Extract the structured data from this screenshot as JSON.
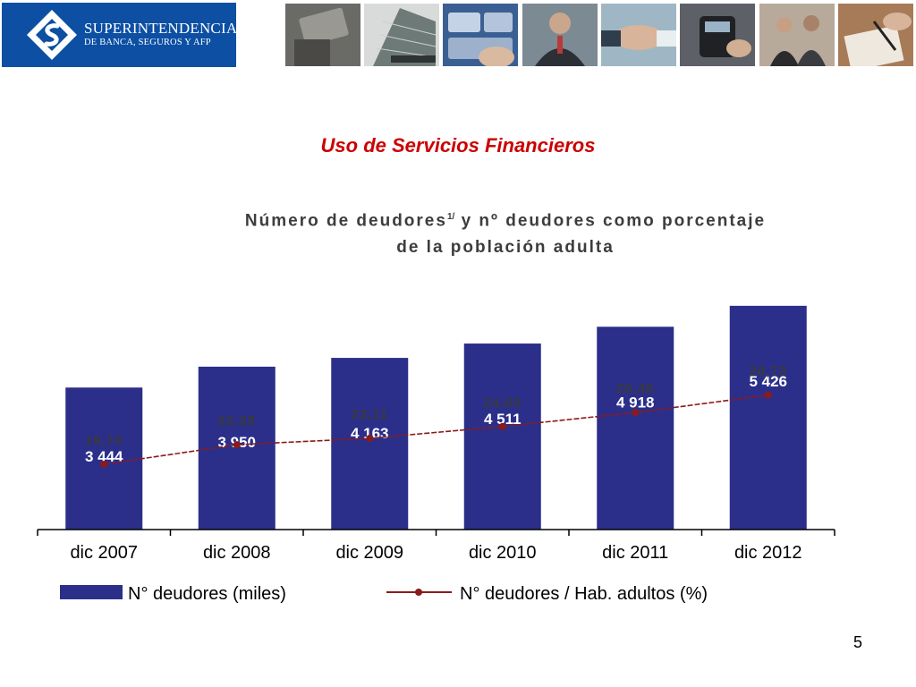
{
  "header": {
    "logo_line1": "SUPERINTENDENCIA",
    "logo_line2": "DE BANCA, SEGUROS Y AFP",
    "logo_color": "#0c4fa3"
  },
  "slide": {
    "title": "Uso de Servicios Financieros",
    "page_number": "5"
  },
  "chart_data": {
    "type": "bar",
    "title": "Número de deudores",
    "title_sup": "1/",
    "title_rest": " y nº deudores como porcentaje",
    "title_line2": "de la población adulta",
    "categories": [
      "dic 2007",
      "dic 2008",
      "dic 2009",
      "dic 2010",
      "dic 2011",
      "dic 2012"
    ],
    "series": [
      {
        "name": "N° deudores (miles)",
        "type": "bar",
        "color": "#2b2f8a",
        "values": [
          3444,
          3950,
          4163,
          4511,
          4918,
          5426
        ],
        "labels": [
          "3 444",
          "3 950",
          "4 163",
          "4 511",
          "4 918",
          "5 426"
        ]
      },
      {
        "name": "N° deudores / Hab. adultos (%)",
        "type": "line",
        "color": "#8b1a1a",
        "values": [
          19.74,
          22.28,
          23.11,
          24.65,
          26.46,
          28.73
        ],
        "labels": [
          "19,74",
          "22,28",
          "23,11",
          "24,65",
          "26,46",
          "28,73"
        ]
      }
    ],
    "grid": false,
    "legend": "bottom"
  }
}
